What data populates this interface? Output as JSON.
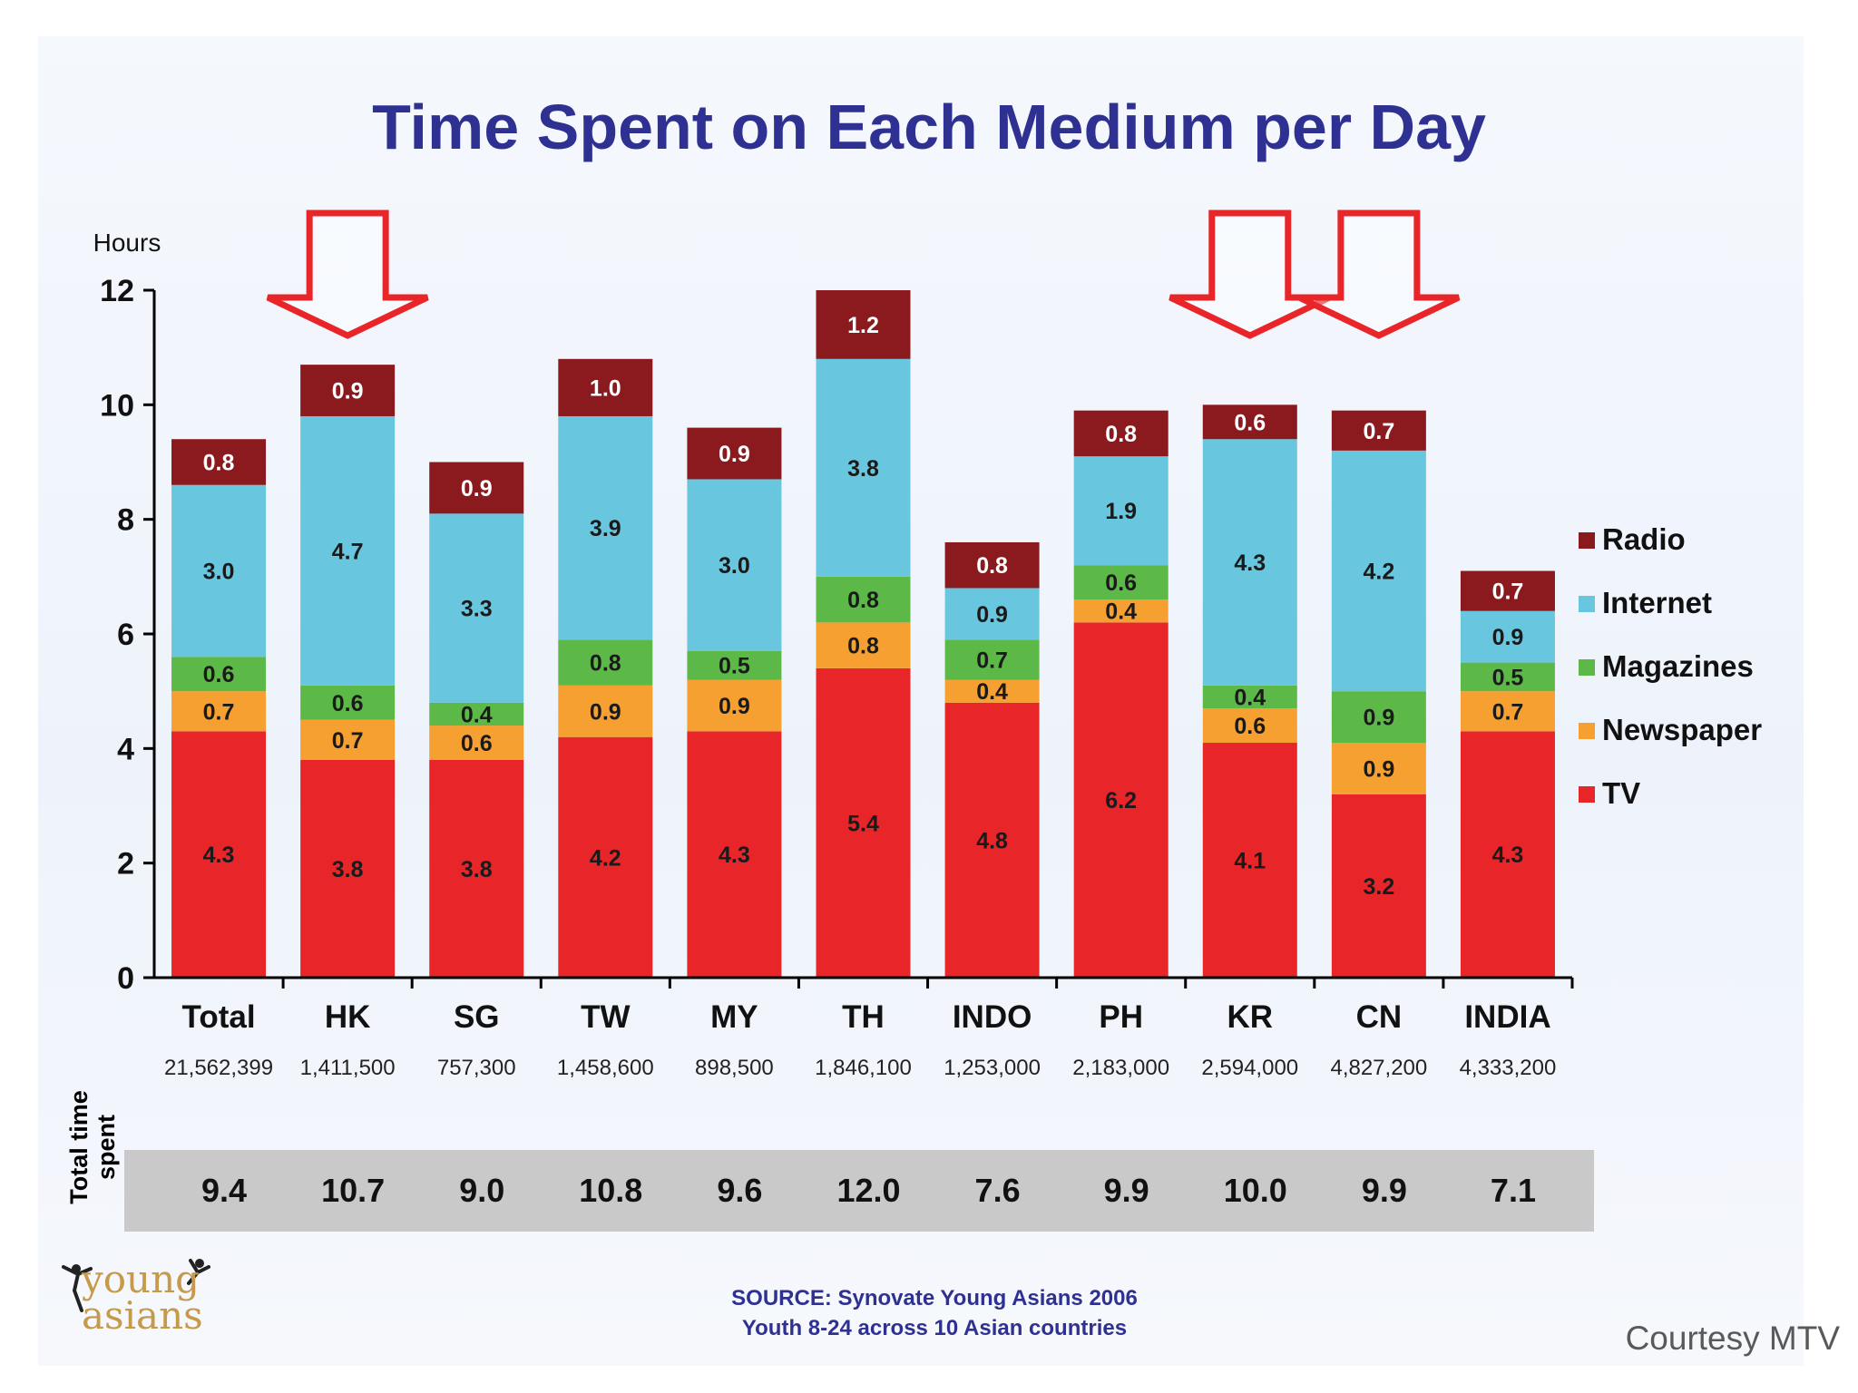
{
  "chart_data": {
    "type": "bar",
    "stacked": true,
    "title": "Time Spent on Each Medium per Day",
    "ylabel": "Hours",
    "ylim": [
      0,
      12
    ],
    "yticks": [
      0,
      2,
      4,
      6,
      8,
      10,
      12
    ],
    "categories": [
      "Total",
      "HK",
      "SG",
      "TW",
      "MY",
      "TH",
      "INDO",
      "PH",
      "KR",
      "CN",
      "INDIA"
    ],
    "sample_sizes": [
      "21,562,399",
      "1,411,500",
      "757,300",
      "1,458,600",
      "898,500",
      "1,846,100",
      "1,253,000",
      "2,183,000",
      "2,594,000",
      "4,827,200",
      "4,333,200"
    ],
    "series": [
      {
        "name": "TV",
        "color": "#e8262a",
        "values": [
          "4.3",
          "3.8",
          "3.8",
          "4.2",
          "4.3",
          "5.4",
          "4.8",
          "6.2",
          "4.1",
          "3.2",
          "4.3"
        ]
      },
      {
        "name": "Newspaper",
        "color": "#f5a031",
        "values": [
          "0.7",
          "0.7",
          "0.6",
          "0.9",
          "0.9",
          "0.8",
          "0.4",
          "0.4",
          "0.6",
          "0.9",
          "0.7"
        ]
      },
      {
        "name": "Magazines",
        "color": "#5cb947",
        "values": [
          "0.6",
          "0.6",
          "0.4",
          "0.8",
          "0.5",
          "0.8",
          "0.7",
          "0.6",
          "0.4",
          "0.9",
          "0.5"
        ]
      },
      {
        "name": "Internet",
        "color": "#69c6df",
        "values": [
          "3.0",
          "4.7",
          "3.3",
          "3.9",
          "3.0",
          "3.8",
          "0.9",
          "1.9",
          "4.3",
          "4.2",
          "0.9"
        ]
      },
      {
        "name": "Radio",
        "color": "#8b1a1e",
        "values": [
          "0.8",
          "0.9",
          "0.9",
          "1.0",
          "0.9",
          "1.2",
          "0.8",
          "0.8",
          "0.6",
          "0.7",
          "0.7"
        ]
      }
    ],
    "legend_order": [
      "Radio",
      "Internet",
      "Magazines",
      "Newspaper",
      "TV"
    ],
    "legend_position": "right",
    "totals_label": "Total time spent",
    "totals": [
      "9.4",
      "10.7",
      "9.0",
      "10.8",
      "9.6",
      "12.0",
      "7.6",
      "9.9",
      "10.0",
      "9.9",
      "7.1"
    ],
    "highlighted_categories": [
      "HK",
      "KR",
      "CN"
    ]
  },
  "logo": {
    "line1": "young",
    "line2": "asians"
  },
  "source": {
    "line1": "SOURCE: Synovate Young Asians 2006",
    "line2": "Youth 8-24 across 10 Asian countries"
  },
  "courtesy": "Courtesy MTV",
  "colors": {
    "title": "#2e3192",
    "arrow": "#e8262a",
    "axis": "#000000"
  }
}
